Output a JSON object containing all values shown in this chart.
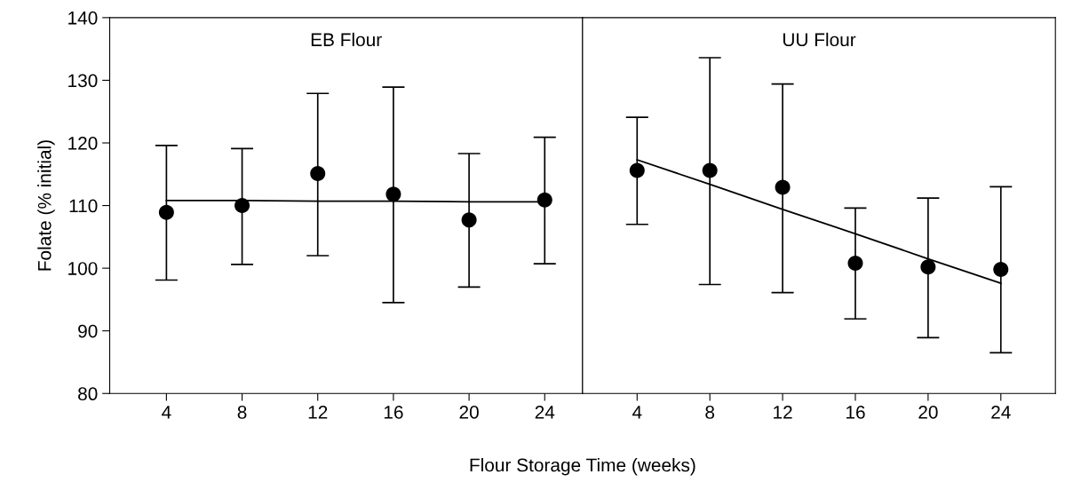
{
  "chart_data": [
    {
      "type": "scatter",
      "title": "EB Flour",
      "xlabel": "Flour Storage Time (weeks)",
      "ylabel": "Folate (% initial)",
      "x": [
        4,
        8,
        12,
        16,
        20,
        24
      ],
      "xlim": [
        1,
        26
      ],
      "xticks": [
        4,
        8,
        12,
        16,
        20,
        24
      ],
      "ylim": [
        80,
        140
      ],
      "yticks": [
        80,
        90,
        100,
        110,
        120,
        130,
        140
      ],
      "grid": false,
      "series": [
        {
          "marker": "circle",
          "color": "#000000",
          "values": [
            108.9,
            110.0,
            115.1,
            111.8,
            107.7,
            110.9
          ],
          "errors": [
            [
              98.1,
              119.6
            ],
            [
              100.6,
              119.1
            ],
            [
              102.0,
              127.9
            ],
            [
              94.5,
              128.9
            ],
            [
              97.0,
              118.3
            ],
            [
              100.7,
              120.9
            ]
          ]
        },
        {
          "type": "line",
          "marker": "none",
          "color": "#000000",
          "values": [
            110.8,
            110.8,
            110.7,
            110.7,
            110.6,
            110.6
          ]
        }
      ]
    },
    {
      "type": "scatter",
      "title": "UU Flour",
      "x": [
        4,
        8,
        12,
        16,
        20,
        24
      ],
      "xlim": [
        1,
        27
      ],
      "xticks": [
        4,
        8,
        12,
        16,
        20,
        24
      ],
      "ylim": [
        80,
        140
      ],
      "tick_labels": "x",
      "grid": false,
      "series": [
        {
          "marker": "circle",
          "color": "#000000",
          "values": [
            115.6,
            115.6,
            112.9,
            100.8,
            100.2,
            99.8
          ],
          "errors": [
            [
              107.0,
              124.1
            ],
            [
              97.4,
              133.6
            ],
            [
              96.1,
              129.4
            ],
            [
              91.9,
              109.6
            ],
            [
              88.9,
              111.2
            ],
            [
              86.5,
              113.0
            ]
          ]
        },
        {
          "type": "line",
          "marker": "none",
          "color": "#000000",
          "values": [
            117.3,
            113.4,
            109.4,
            105.5,
            101.5,
            97.6
          ]
        }
      ]
    }
  ]
}
